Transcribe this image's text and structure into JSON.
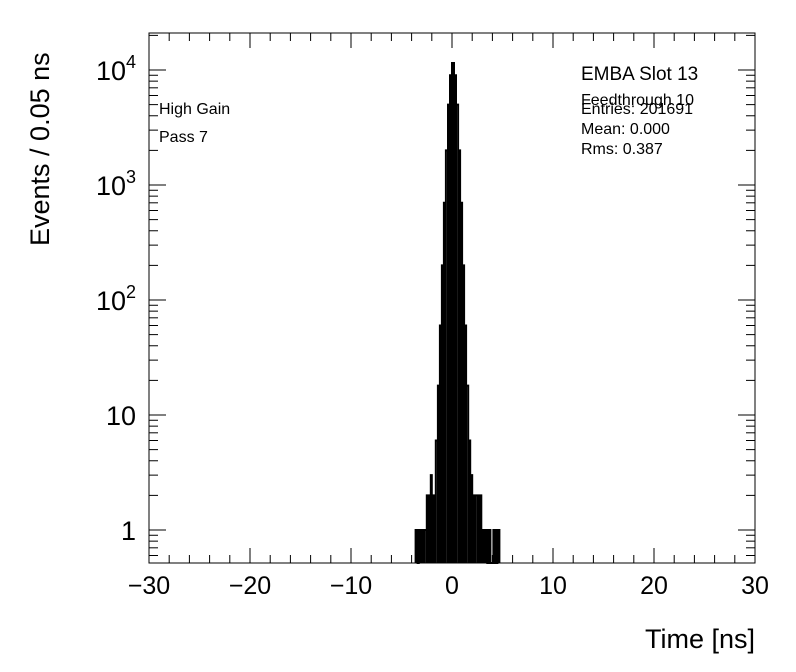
{
  "chart_data": {
    "type": "line",
    "title": "",
    "xlabel": "Time [ns]",
    "ylabel": "Events / 0.05 ns",
    "xlim": [
      -30,
      30
    ],
    "ylim": [
      0.55,
      20000
    ],
    "yscale": "log",
    "bin_width": 0.05,
    "x_ticks": [
      -30,
      -20,
      -10,
      0,
      10,
      20,
      30
    ],
    "x_tick_labels": [
      "−30",
      "−20",
      "−10",
      "0",
      "10",
      "20",
      "30"
    ],
    "y_ticks": [
      1,
      10,
      100,
      1000,
      10000
    ],
    "y_tick_labels": [
      {
        "base": "1",
        "exp": ""
      },
      {
        "base": "10",
        "exp": ""
      },
      {
        "base": "10",
        "exp": "2"
      },
      {
        "base": "10",
        "exp": "3"
      },
      {
        "base": "10",
        "exp": "4"
      }
    ],
    "annotations_left": [
      "High Gain",
      "Pass 7"
    ],
    "stats_box": {
      "title": "EMBA Slot 13",
      "lines": [
        "Feedthrough 10",
        "Entries: 201691",
        "Mean: 0.000",
        "Rms: 0.387"
      ]
    },
    "series": [
      {
        "x": [
          -3.6,
          -3.3,
          -3.1,
          -2.9,
          -2.7,
          -2.5,
          -2.3,
          -2.1,
          -2.0,
          -1.8,
          -1.6,
          -1.4,
          -1.2,
          -1.0,
          -0.8,
          -0.6,
          -0.4,
          -0.2,
          0.0,
          0.2,
          0.4,
          0.6,
          0.8,
          1.0,
          1.2,
          1.4,
          1.6,
          1.8,
          2.0,
          2.1,
          2.3,
          2.5,
          2.7,
          2.9,
          3.1,
          3.3,
          3.6,
          4.1,
          4.5
        ],
        "values": [
          1,
          1,
          1,
          1,
          1,
          2,
          1,
          3,
          2,
          2,
          6,
          18,
          60,
          200,
          700,
          2000,
          5000,
          9000,
          11500,
          9000,
          5000,
          2000,
          700,
          200,
          60,
          18,
          6,
          3,
          2,
          1,
          2,
          1,
          2,
          1,
          1,
          1,
          1,
          1,
          1
        ]
      }
    ]
  }
}
